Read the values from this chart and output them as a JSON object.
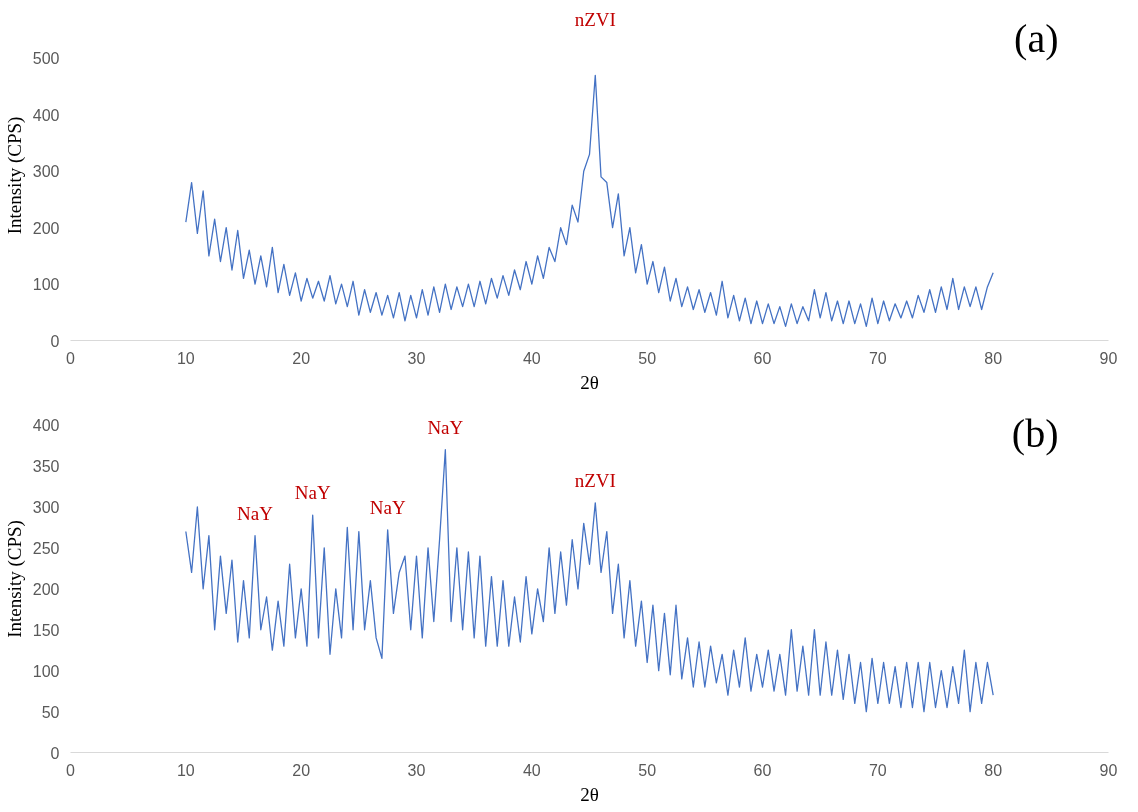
{
  "chart_data": [
    {
      "type": "line",
      "xlabel": "2θ",
      "ylabel": "Intensity (CPS)",
      "xlim": [
        0,
        90
      ],
      "ylim": [
        0,
        500
      ],
      "xticks": [
        0,
        10,
        20,
        30,
        40,
        50,
        60,
        70,
        80,
        90
      ],
      "yticks": [
        0,
        100,
        200,
        300,
        400,
        500
      ],
      "annotations": [
        "(a)",
        {
          "text": "nZVI",
          "x": 45.5,
          "y": 470
        }
      ],
      "x": [
        10,
        10.5,
        11,
        11.5,
        12,
        12.5,
        13,
        13.5,
        14,
        14.5,
        15,
        15.5,
        16,
        16.5,
        17,
        17.5,
        18,
        18.5,
        19,
        19.5,
        20,
        20.5,
        21,
        21.5,
        22,
        22.5,
        23,
        23.5,
        24,
        24.5,
        25,
        25.5,
        26,
        26.5,
        27,
        27.5,
        28,
        28.5,
        29,
        29.5,
        30,
        30.5,
        31,
        31.5,
        32,
        32.5,
        33,
        33.5,
        34,
        34.5,
        35,
        35.5,
        36,
        36.5,
        37,
        37.5,
        38,
        38.5,
        39,
        39.5,
        40,
        40.5,
        41,
        41.5,
        42,
        42.5,
        43,
        43.5,
        44,
        44.5,
        45,
        45.5,
        46,
        46.5,
        47,
        47.5,
        48,
        48.5,
        49,
        49.5,
        50,
        50.5,
        51,
        51.5,
        52,
        52.5,
        53,
        53.5,
        54,
        54.5,
        55,
        55.5,
        56,
        56.5,
        57,
        57.5,
        58,
        58.5,
        59,
        59.5,
        60,
        60.5,
        61,
        61.5,
        62,
        62.5,
        63,
        63.5,
        64,
        64.5,
        65,
        65.5,
        66,
        66.5,
        67,
        67.5,
        68,
        68.5,
        69,
        69.5,
        70,
        70.5,
        71,
        71.5,
        72,
        72.5,
        73,
        73.5,
        74,
        74.5,
        75,
        75.5,
        76,
        76.5,
        77,
        77.5,
        78,
        78.5,
        79,
        79.5,
        80
      ],
      "series": [
        {
          "color": "#4472c4",
          "values": [
            210,
            280,
            190,
            265,
            150,
            215,
            140,
            200,
            125,
            195,
            110,
            160,
            100,
            150,
            95,
            165,
            85,
            135,
            80,
            120,
            70,
            110,
            75,
            105,
            70,
            115,
            65,
            100,
            60,
            105,
            45,
            90,
            50,
            85,
            45,
            80,
            40,
            85,
            35,
            80,
            40,
            90,
            45,
            95,
            50,
            100,
            55,
            95,
            60,
            100,
            60,
            105,
            65,
            110,
            75,
            115,
            80,
            125,
            90,
            140,
            100,
            150,
            110,
            165,
            140,
            200,
            170,
            240,
            210,
            300,
            330,
            470,
            290,
            280,
            200,
            260,
            150,
            200,
            120,
            170,
            100,
            140,
            85,
            130,
            70,
            110,
            60,
            95,
            55,
            90,
            50,
            85,
            45,
            105,
            40,
            80,
            35,
            75,
            30,
            70,
            30,
            65,
            30,
            60,
            25,
            65,
            30,
            60,
            35,
            90,
            40,
            85,
            35,
            70,
            30,
            70,
            30,
            65,
            25,
            75,
            30,
            70,
            35,
            65,
            40,
            70,
            40,
            80,
            50,
            90,
            50,
            95,
            55,
            110,
            55,
            95,
            60,
            95,
            55,
            95,
            120
          ]
        }
      ]
    },
    {
      "type": "line",
      "xlabel": "2θ",
      "ylabel": "Intensity (CPS)",
      "xlim": [
        0,
        90
      ],
      "ylim": [
        0,
        400
      ],
      "xticks": [
        0,
        10,
        20,
        30,
        40,
        50,
        60,
        70,
        80,
        90
      ],
      "yticks": [
        0,
        50,
        100,
        150,
        200,
        250,
        300,
        350,
        400
      ],
      "annotations": [
        "(b)",
        {
          "text": "NaY",
          "x": 16,
          "y": 265
        },
        {
          "text": "NaY",
          "x": 21,
          "y": 290
        },
        {
          "text": "NaY",
          "x": 27.5,
          "y": 272
        },
        {
          "text": "NaY",
          "x": 32.5,
          "y": 370
        },
        {
          "text": "nZVI",
          "x": 45.5,
          "y": 305
        }
      ],
      "x": [
        10,
        10.5,
        11,
        11.5,
        12,
        12.5,
        13,
        13.5,
        14,
        14.5,
        15,
        15.5,
        16,
        16.5,
        17,
        17.5,
        18,
        18.5,
        19,
        19.5,
        20,
        20.5,
        21,
        21.5,
        22,
        22.5,
        23,
        23.5,
        24,
        24.5,
        25,
        25.5,
        26,
        26.5,
        27,
        27.5,
        28,
        28.5,
        29,
        29.5,
        30,
        30.5,
        31,
        31.5,
        32,
        32.5,
        33,
        33.5,
        34,
        34.5,
        35,
        35.5,
        36,
        36.5,
        37,
        37.5,
        38,
        38.5,
        39,
        39.5,
        40,
        40.5,
        41,
        41.5,
        42,
        42.5,
        43,
        43.5,
        44,
        44.5,
        45,
        45.5,
        46,
        46.5,
        47,
        47.5,
        48,
        48.5,
        49,
        49.5,
        50,
        50.5,
        51,
        51.5,
        52,
        52.5,
        53,
        53.5,
        54,
        54.5,
        55,
        55.5,
        56,
        56.5,
        57,
        57.5,
        58,
        58.5,
        59,
        59.5,
        60,
        60.5,
        61,
        61.5,
        62,
        62.5,
        63,
        63.5,
        64,
        64.5,
        65,
        65.5,
        66,
        66.5,
        67,
        67.5,
        68,
        68.5,
        69,
        69.5,
        70,
        70.5,
        71,
        71.5,
        72,
        72.5,
        73,
        73.5,
        74,
        74.5,
        75,
        75.5,
        76,
        76.5,
        77,
        77.5,
        78,
        78.5,
        79,
        79.5,
        80
      ],
      "series": [
        {
          "color": "#4472c4",
          "values": [
            270,
            220,
            300,
            200,
            265,
            150,
            240,
            170,
            235,
            135,
            210,
            140,
            265,
            150,
            190,
            125,
            185,
            130,
            230,
            140,
            200,
            130,
            290,
            140,
            250,
            120,
            200,
            140,
            275,
            150,
            270,
            150,
            210,
            140,
            115,
            272,
            170,
            220,
            240,
            150,
            240,
            140,
            250,
            160,
            260,
            370,
            160,
            250,
            150,
            245,
            140,
            240,
            130,
            215,
            130,
            210,
            130,
            190,
            135,
            215,
            145,
            200,
            160,
            250,
            170,
            245,
            180,
            260,
            200,
            280,
            230,
            305,
            220,
            270,
            170,
            230,
            140,
            210,
            130,
            185,
            110,
            180,
            100,
            170,
            95,
            180,
            90,
            140,
            80,
            135,
            80,
            130,
            85,
            120,
            70,
            125,
            80,
            140,
            75,
            120,
            80,
            125,
            75,
            120,
            70,
            150,
            75,
            130,
            70,
            150,
            70,
            135,
            70,
            125,
            65,
            120,
            60,
            110,
            50,
            115,
            60,
            110,
            60,
            105,
            55,
            110,
            55,
            110,
            50,
            110,
            55,
            100,
            55,
            105,
            60,
            125,
            50,
            110,
            60,
            110,
            70
          ]
        }
      ]
    }
  ]
}
